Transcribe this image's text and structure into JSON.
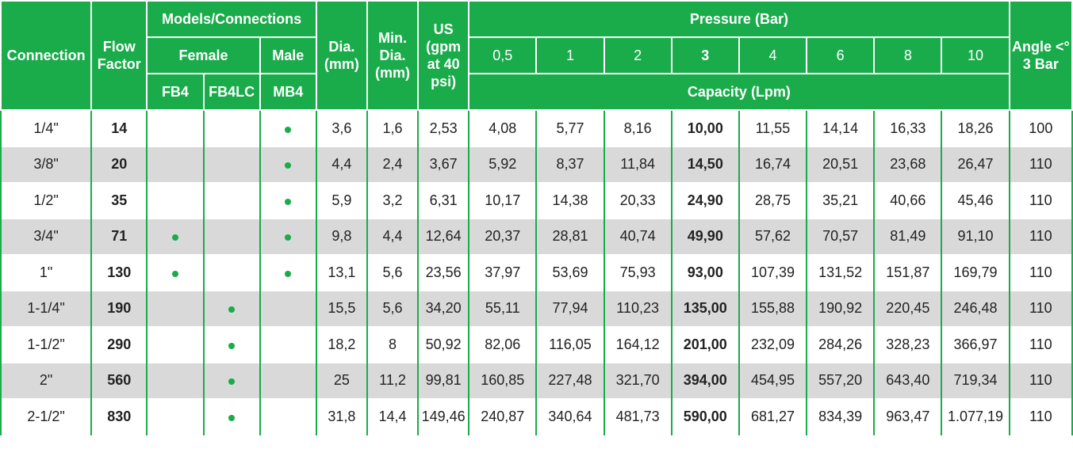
{
  "header": {
    "connection": "Connection",
    "flow_factor": "Flow Factor",
    "models_connections": "Models/Connections",
    "female": "Female",
    "male": "Male",
    "fb4": "FB4",
    "fb4lc": "FB4LC",
    "mb4": "MB4",
    "dia": "Dia. (mm)",
    "min_dia": "Min. Dia. (mm)",
    "us": "US (gpm at 40 psi)",
    "pressure": "Pressure (Bar)",
    "pressures": [
      "0,5",
      "1",
      "2",
      "3",
      "4",
      "6",
      "8",
      "10"
    ],
    "capacity": "Capacity (Lpm)",
    "angle": "Angle <° 3 Bar"
  },
  "rows": [
    {
      "connection": "1/4\"",
      "flow": "14",
      "fb4": false,
      "fb4lc": false,
      "mb4": true,
      "dia": "3,6",
      "min_dia": "1,6",
      "us": "2,53",
      "caps": [
        "4,08",
        "5,77",
        "8,16",
        "10,00",
        "11,55",
        "14,14",
        "16,33",
        "18,26"
      ],
      "angle": "100"
    },
    {
      "connection": "3/8\"",
      "flow": "20",
      "fb4": false,
      "fb4lc": false,
      "mb4": true,
      "dia": "4,4",
      "min_dia": "2,4",
      "us": "3,67",
      "caps": [
        "5,92",
        "8,37",
        "11,84",
        "14,50",
        "16,74",
        "20,51",
        "23,68",
        "26,47"
      ],
      "angle": "110"
    },
    {
      "connection": "1/2\"",
      "flow": "35",
      "fb4": false,
      "fb4lc": false,
      "mb4": true,
      "dia": "5,9",
      "min_dia": "3,2",
      "us": "6,31",
      "caps": [
        "10,17",
        "14,38",
        "20,33",
        "24,90",
        "28,75",
        "35,21",
        "40,66",
        "45,46"
      ],
      "angle": "110"
    },
    {
      "connection": "3/4\"",
      "flow": "71",
      "fb4": true,
      "fb4lc": false,
      "mb4": true,
      "dia": "9,8",
      "min_dia": "4,4",
      "us": "12,64",
      "caps": [
        "20,37",
        "28,81",
        "40,74",
        "49,90",
        "57,62",
        "70,57",
        "81,49",
        "91,10"
      ],
      "angle": "110"
    },
    {
      "connection": "1\"",
      "flow": "130",
      "fb4": true,
      "fb4lc": false,
      "mb4": true,
      "dia": "13,1",
      "min_dia": "5,6",
      "us": "23,56",
      "caps": [
        "37,97",
        "53,69",
        "75,93",
        "93,00",
        "107,39",
        "131,52",
        "151,87",
        "169,79"
      ],
      "angle": "110"
    },
    {
      "connection": "1-1/4\"",
      "flow": "190",
      "fb4": false,
      "fb4lc": true,
      "mb4": false,
      "dia": "15,5",
      "min_dia": "5,6",
      "us": "34,20",
      "caps": [
        "55,11",
        "77,94",
        "110,23",
        "135,00",
        "155,88",
        "190,92",
        "220,45",
        "246,48"
      ],
      "angle": "110"
    },
    {
      "connection": "1-1/2\"",
      "flow": "290",
      "fb4": false,
      "fb4lc": true,
      "mb4": false,
      "dia": "18,2",
      "min_dia": "8",
      "us": "50,92",
      "caps": [
        "82,06",
        "116,05",
        "164,12",
        "201,00",
        "232,09",
        "284,26",
        "328,23",
        "366,97"
      ],
      "angle": "110"
    },
    {
      "connection": "2\"",
      "flow": "560",
      "fb4": false,
      "fb4lc": true,
      "mb4": false,
      "dia": "25",
      "min_dia": "11,2",
      "us": "99,81",
      "caps": [
        "160,85",
        "227,48",
        "321,70",
        "394,00",
        "454,95",
        "557,20",
        "643,40",
        "719,34"
      ],
      "angle": "110"
    },
    {
      "connection": "2-1/2\"",
      "flow": "830",
      "fb4": false,
      "fb4lc": true,
      "mb4": false,
      "dia": "31,8",
      "min_dia": "14,4",
      "us": "149,46",
      "caps": [
        "240,87",
        "340,64",
        "481,73",
        "590,00",
        "681,27",
        "834,39",
        "963,47",
        "1.077,19"
      ],
      "angle": "110"
    }
  ],
  "colors": {
    "header_bg": "#1aab4b",
    "dot": "#1aab4b",
    "alt_row": "#d9d9d9"
  }
}
